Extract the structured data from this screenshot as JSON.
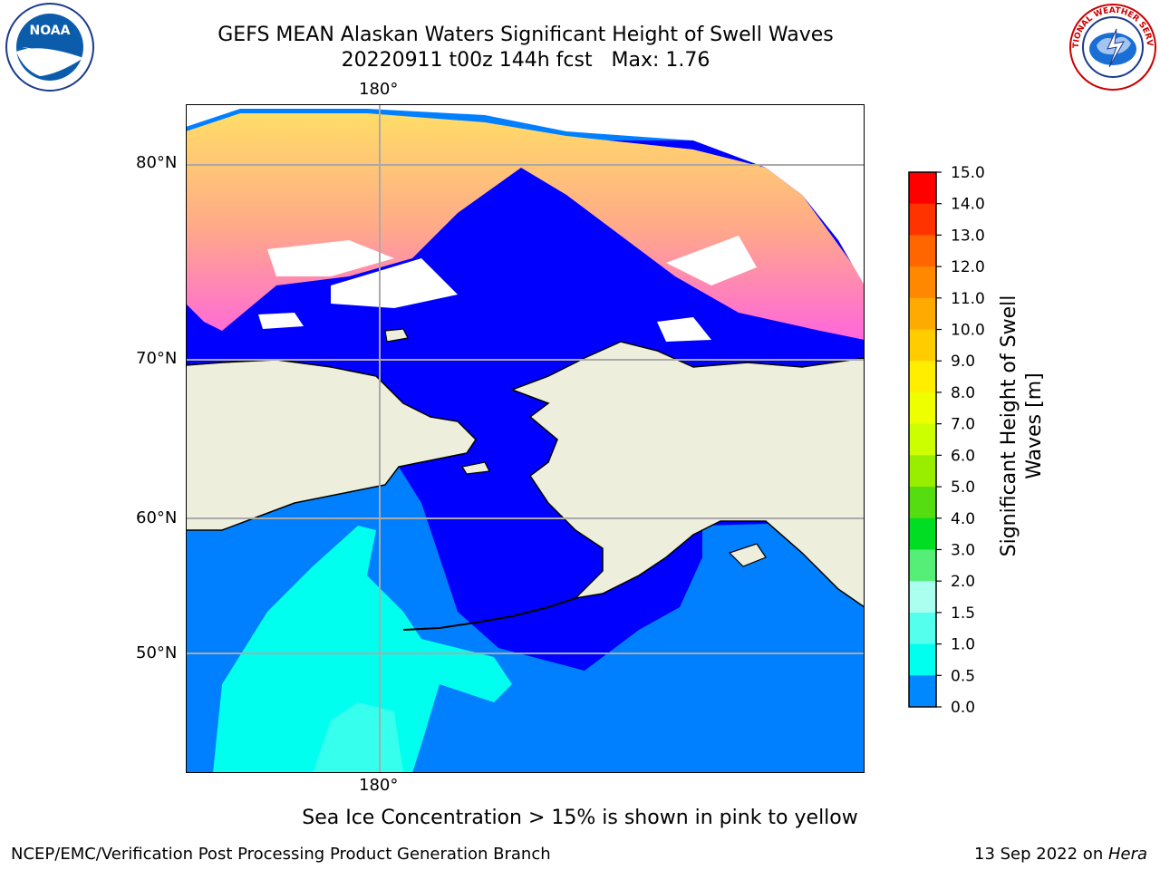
{
  "title": {
    "line1": "GEFS MEAN Alaskan Waters Significant Height of Swell Waves",
    "line2": "20220911 t00z 144h fcst   Max: 1.76"
  },
  "axes": {
    "lon_top": "180°",
    "lon_bottom": "180°",
    "lat_labels": [
      "80°N",
      "70°N",
      "60°N",
      "50°N"
    ]
  },
  "colorbar": {
    "title_line1": "Significant Height of Swell",
    "title_line2": "Waves [m]",
    "ticks": [
      "15.0",
      "14.0",
      "13.0",
      "12.0",
      "11.0",
      "10.0",
      "9.0",
      "8.0",
      "7.0",
      "6.0",
      "5.0",
      "4.0",
      "3.0",
      "2.0",
      "1.5",
      "1.0",
      "0.5",
      "0.0"
    ],
    "colors": [
      "#ff0000",
      "#ff3300",
      "#ff6600",
      "#ff8800",
      "#ffaa00",
      "#ffcc00",
      "#ffee00",
      "#eeff00",
      "#ccff00",
      "#99ee00",
      "#55dd11",
      "#00dd22",
      "#55ee77",
      "#aaffee",
      "#55ffee",
      "#00ffee",
      "#0088ff",
      "#0000ff"
    ]
  },
  "map_colors": {
    "ocean_low": "#0000ff",
    "ocean_mid": "#0080ff",
    "ocean_high": "#00ffee",
    "land": "#eeeedd",
    "ice_pink": "#ff66dd",
    "ice_yellow": "#ffdd66"
  },
  "caption": "Sea Ice Concentration > 15% is shown in pink to yellow",
  "footer": {
    "left": "NCEP/EMC/Verification Post Processing Product Generation Branch",
    "right_date": "13 Sep 2022 on ",
    "right_host": "Hera"
  },
  "logos": {
    "noaa": "NOAA",
    "nws": "NATIONAL WEATHER SERVICE"
  }
}
